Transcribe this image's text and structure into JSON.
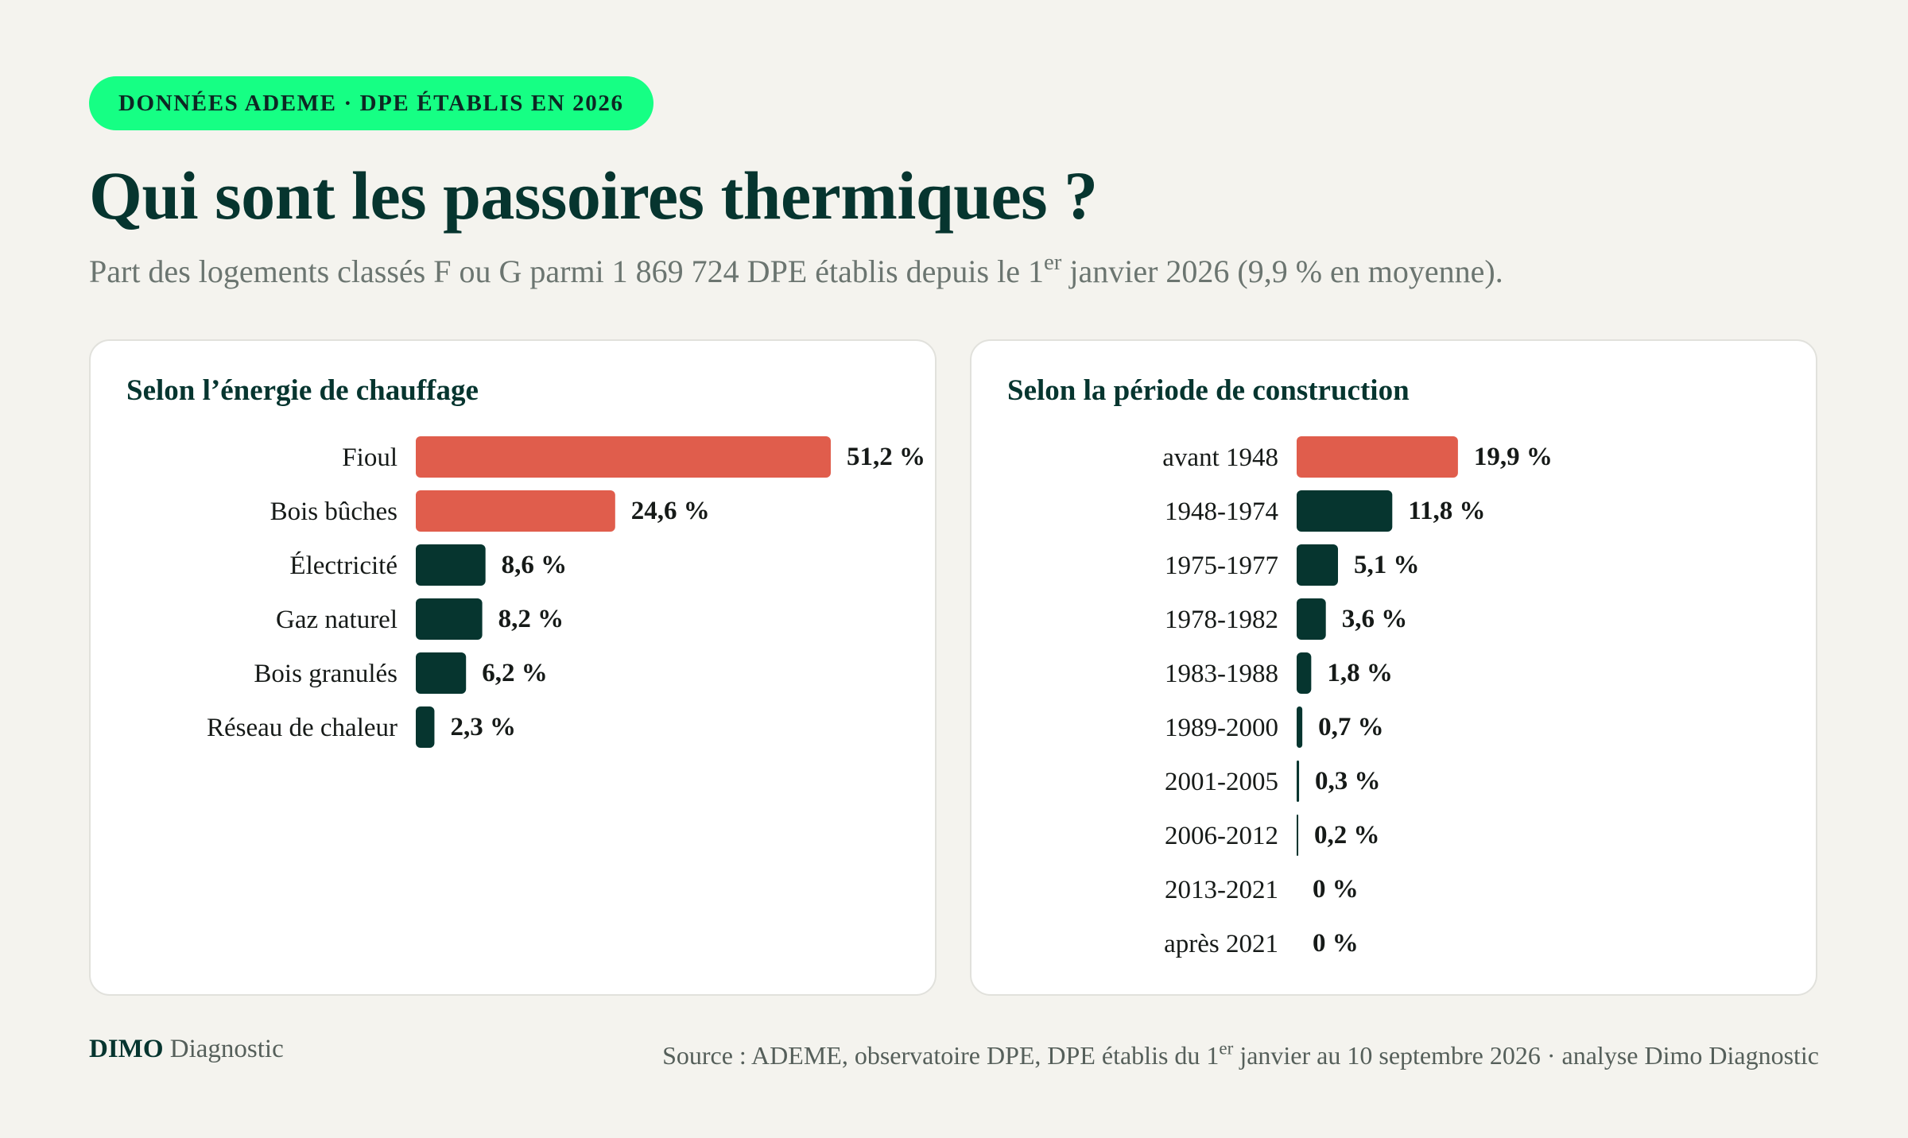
{
  "badge": "DONNÉES ADEME · DPE ÉTABLIS EN 2026",
  "title": "Qui sont les passoires thermiques ?",
  "subtitle": {
    "before": "Part des logements classés F ou G parmi 1 869 724 DPE établis depuis le 1",
    "sup": "er",
    "after": " janvier 2026 (9,9 % en moyenne)."
  },
  "footer": {
    "brand_bold": "DIMO",
    "brand_light": " Diagnostic",
    "source_before": "Source : ADEME, observatoire DPE, DPE établis du 1",
    "source_sup": "er",
    "source_after": " janvier au 10 septembre 2026 · analyse Dimo Diagnostic"
  },
  "colors": {
    "highlight": "#e05d4c",
    "default": "#06352f",
    "badge": "#16ff84",
    "background": "#f4f3ee"
  },
  "chart_data": [
    {
      "type": "bar",
      "orientation": "horizontal",
      "title": "Selon l’énergie de chauffage",
      "categories": [
        "Fioul",
        "Bois bûches",
        "Électricité",
        "Gaz naturel",
        "Bois granulés",
        "Réseau de chaleur"
      ],
      "values": [
        51.2,
        24.6,
        8.6,
        8.2,
        6.2,
        2.3
      ],
      "labels": [
        "51,2 %",
        "24,6 %",
        "8,6 %",
        "8,2 %",
        "6,2 %",
        "2,3 %"
      ],
      "highlighted": [
        true,
        true,
        false,
        false,
        false,
        false
      ],
      "unit": "%",
      "xlim": [
        0,
        51.2
      ]
    },
    {
      "type": "bar",
      "orientation": "horizontal",
      "title": "Selon la période de construction",
      "categories": [
        "avant 1948",
        "1948-1974",
        "1975-1977",
        "1978-1982",
        "1983-1988",
        "1989-2000",
        "2001-2005",
        "2006-2012",
        "2013-2021",
        "après 2021"
      ],
      "values": [
        19.9,
        11.8,
        5.1,
        3.6,
        1.8,
        0.7,
        0.3,
        0.2,
        0,
        0
      ],
      "labels": [
        "19,9 %",
        "11,8 %",
        "5,1 %",
        "3,6 %",
        "1,8 %",
        "0,7 %",
        "0,3 %",
        "0,2 %",
        "0 %",
        "0 %"
      ],
      "highlighted": [
        true,
        false,
        false,
        false,
        false,
        false,
        false,
        false,
        false,
        false
      ],
      "unit": "%",
      "xlim": [
        0,
        51.2
      ]
    }
  ]
}
